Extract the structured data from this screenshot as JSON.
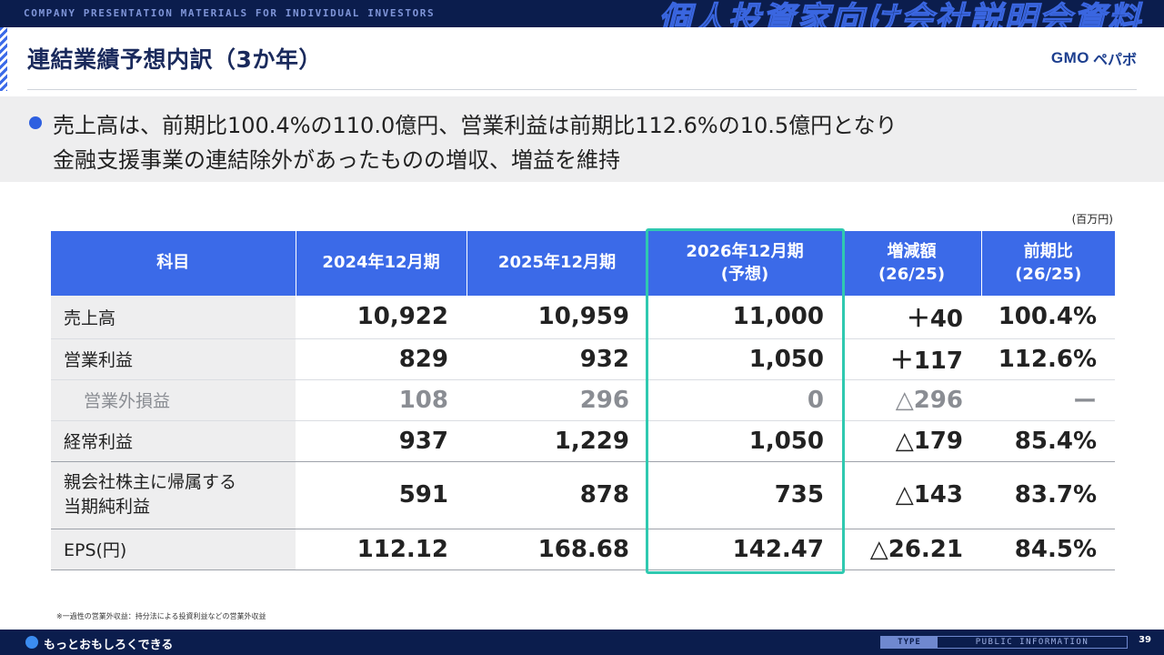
{
  "header": {
    "tag": "COMPANY PRESENTATION MATERIALS FOR INDIVIDUAL INVESTORS",
    "title_jp": "個人投資家向け会社説明会資料"
  },
  "page_title": "連結業績予想内訳（3か年）",
  "logo": {
    "gmo": "GMO",
    "kana": "ペパボ"
  },
  "summary": {
    "line1": "売上高は、前期比100.4%の110.0億円、営業利益は前期比112.6%の10.5億円となり",
    "line2": "金融支援事業の連結除外があったものの増収、増益を維持"
  },
  "unit": "(百万円)",
  "table": {
    "headers": {
      "item": "科目",
      "fy2024": "2024年12月期",
      "fy2025": "2025年12月期",
      "fy2026_l1": "2026年12月期",
      "fy2026_l2": "(予想)",
      "diff_l1": "増減額",
      "diff_l2": "(26/25)",
      "ratio_l1": "前期比",
      "ratio_l2": "(26/25)"
    },
    "rows": [
      {
        "item": "売上高",
        "fy2024": "10,922",
        "fy2025": "10,959",
        "fy2026": "11,000",
        "diff": "＋40",
        "ratio": "100.4%"
      },
      {
        "item": "営業利益",
        "fy2024": "829",
        "fy2025": "932",
        "fy2026": "1,050",
        "diff": "＋117",
        "ratio": "112.6%"
      },
      {
        "item": "営業外損益",
        "fy2024": "108",
        "fy2025": "296",
        "fy2026": "0",
        "diff": "△296",
        "ratio": "ー"
      },
      {
        "item": "経常利益",
        "fy2024": "937",
        "fy2025": "1,229",
        "fy2026": "1,050",
        "diff": "△179",
        "ratio": "85.4%"
      },
      {
        "item_l1": "親会社株主に帰属する",
        "item_l2": "当期純利益",
        "fy2024": "591",
        "fy2025": "878",
        "fy2026": "735",
        "diff": "△143",
        "ratio": "83.7%"
      },
      {
        "item": "EPS(円)",
        "fy2024": "112.12",
        "fy2025": "168.68",
        "fy2026": "142.47",
        "diff": "△26.21",
        "ratio": "84.5%"
      }
    ]
  },
  "footnote": "※一過性の営業外収益：持分法による投資利益などの営業外収益",
  "footer": {
    "tagline": "もっとおもしろくできる",
    "type_label": "TYPE",
    "type_value": "PUBLIC INFORMATION",
    "page": "39"
  },
  "colors": {
    "header_blue": "#3b6ae8",
    "navy": "#0b1d4d",
    "highlight": "#2fc9b0"
  }
}
